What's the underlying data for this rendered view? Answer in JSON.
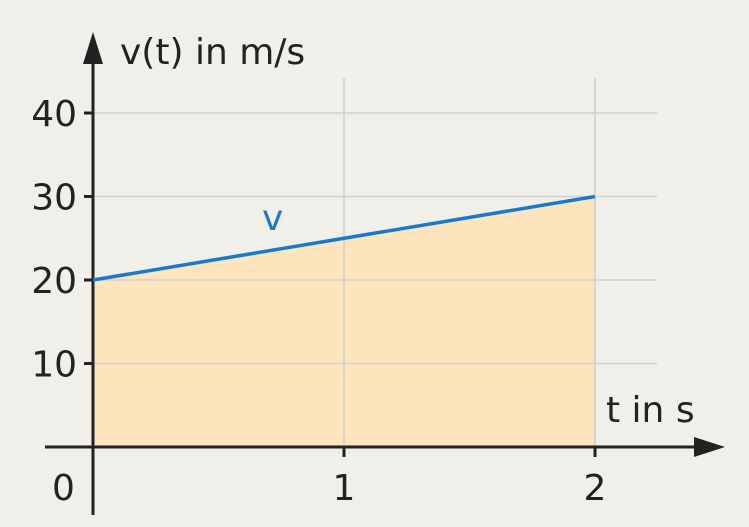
{
  "chart_data": {
    "type": "area",
    "xlabel": "t in s",
    "ylabel": "v(t) in m/s",
    "origin_label": "0",
    "x_ticks": [
      {
        "value": 1,
        "label": "1"
      },
      {
        "value": 2,
        "label": "2"
      }
    ],
    "y_ticks": [
      {
        "value": 10,
        "label": "10"
      },
      {
        "value": 20,
        "label": "20"
      },
      {
        "value": 30,
        "label": "30"
      },
      {
        "value": 40,
        "label": "40"
      }
    ],
    "xlim": [
      0,
      2.4
    ],
    "ylim": [
      0,
      42
    ],
    "grid": true,
    "series": [
      {
        "name": "v",
        "x": [
          0,
          2
        ],
        "values": [
          20,
          30
        ],
        "color": "#1a7ac9",
        "fill_color": "#fde4bd"
      }
    ],
    "colors": {
      "background": "#f1efea",
      "grid": "#cfcfcf",
      "axis": "#222222"
    }
  }
}
